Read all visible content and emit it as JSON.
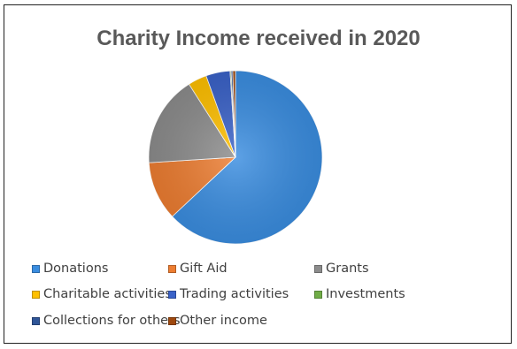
{
  "chart_data": {
    "type": "pie",
    "title": "Charity Income received in 2020",
    "legend_position": "bottom",
    "categories": [
      "Donations",
      "Gift Aid",
      "Grants",
      "Charitable activities",
      "Trading activities",
      "Investments",
      "Collections for others",
      "Other income"
    ],
    "values": [
      63,
      11,
      17,
      3.5,
      4.5,
      0.2,
      0.3,
      0.5
    ],
    "colors": [
      "#3a8de0",
      "#ed7d31",
      "#8c8c8c",
      "#ffc000",
      "#3a62c8",
      "#70ad47",
      "#2f5597",
      "#9e480e"
    ],
    "start_angle_deg": 0
  }
}
